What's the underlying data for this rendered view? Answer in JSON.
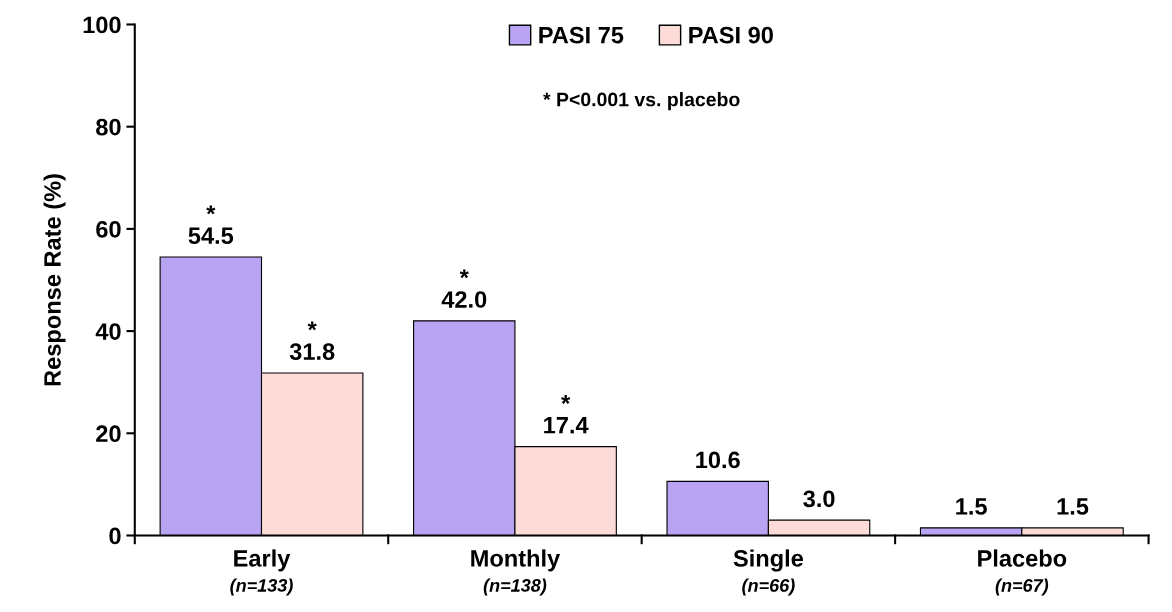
{
  "chart_data": {
    "type": "bar",
    "ylabel": "Response Rate (%)",
    "categories": [
      "Early\n(n=133)",
      "Monthly\n(n=138)",
      "Single\n(n=66)",
      "Placebo\n(n=67)"
    ],
    "series": [
      {
        "name": "PASI 75",
        "color": "#b9a4f4",
        "values": [
          54.5,
          42.0,
          10.6,
          1.5
        ],
        "value_labels": [
          "*\n54.5",
          "*\n42.0",
          "10.6",
          "1.5"
        ]
      },
      {
        "name": "PASI 90",
        "color": "#fddbd8",
        "values": [
          31.8,
          17.4,
          3.0,
          1.5
        ],
        "value_labels": [
          "*\n31.8",
          "*\n17.4",
          "3.0",
          "1.5"
        ]
      }
    ],
    "ylim": [
      0,
      100
    ],
    "yticks": [
      0,
      20,
      40,
      60,
      80,
      100
    ],
    "grid": false,
    "legend": "top",
    "annotations": [
      "* P<0.001 vs. placebo"
    ]
  }
}
